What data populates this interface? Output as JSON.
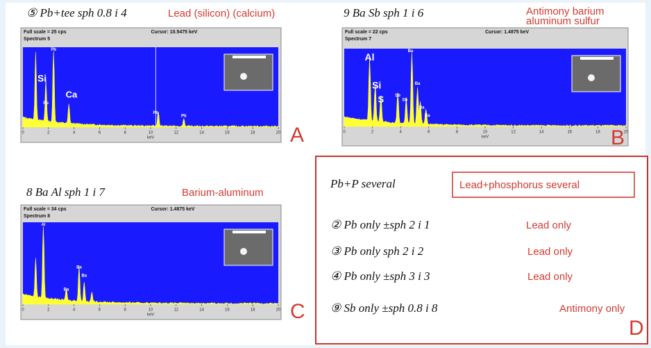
{
  "panels": [
    {
      "letter": "A",
      "note": "⑤ Pb+tee sph 0.8 i 4",
      "caption": [
        "Lead (silicon) (calcium)"
      ],
      "full_scale": "Full scale = 25 cps",
      "cursor": "Cursor: 10.5475 keV",
      "spectrum": "Spectrum 5",
      "peak_labels": [
        "Si",
        "Ca",
        "Pb",
        "Pb",
        "Pb",
        "Pb"
      ],
      "xticks": [
        0,
        2,
        4,
        6,
        8,
        10,
        12,
        14,
        16,
        18,
        20
      ],
      "x_label": "keV"
    },
    {
      "letter": "B",
      "note": "9 Ba Sb sph 1 i 6",
      "caption": [
        "Antimony barium",
        "aluminum sulfur"
      ],
      "full_scale": "Full scale = 22 cps",
      "cursor": "Cursor: 1.4875 keV",
      "spectrum": "Spectrum 7",
      "peak_labels": [
        "Al",
        "Si",
        "S",
        "Sb",
        "Sb",
        "Ba",
        "Ba",
        "Ba",
        "Ba"
      ],
      "xticks": [
        0,
        2,
        4,
        6,
        8,
        10,
        12,
        14,
        16,
        18,
        20
      ],
      "x_label": "keV"
    },
    {
      "letter": "C",
      "note": "8 Ba Al sph 1 i 7",
      "caption": [
        "Barium-aluminum"
      ],
      "full_scale": "Full scale = 34 cps",
      "cursor": "Cursor: 1.4875 keV",
      "spectrum": "Spectrum 8",
      "peak_labels": [
        "Al",
        "Ba",
        "Ba",
        "Ba"
      ],
      "xticks": [
        0,
        2,
        4,
        6,
        8,
        10,
        12,
        14,
        16,
        18,
        20
      ],
      "x_label": "keV"
    }
  ],
  "summary": {
    "letter": "D",
    "heading_note": "Pb+P several",
    "heading": "Lead+phosphorus several",
    "rows": [
      {
        "note": "② Pb only ±sph 2 i 1",
        "label": "Lead only"
      },
      {
        "note": "③ Pb only sph 2 i 2",
        "label": "Lead only"
      },
      {
        "note": "④ Pb only ±sph 3 i 3",
        "label": "Lead only"
      },
      {
        "note": "⑨ Sb only ±sph 0.8 i 8",
        "label": "Antimony only"
      }
    ]
  }
}
